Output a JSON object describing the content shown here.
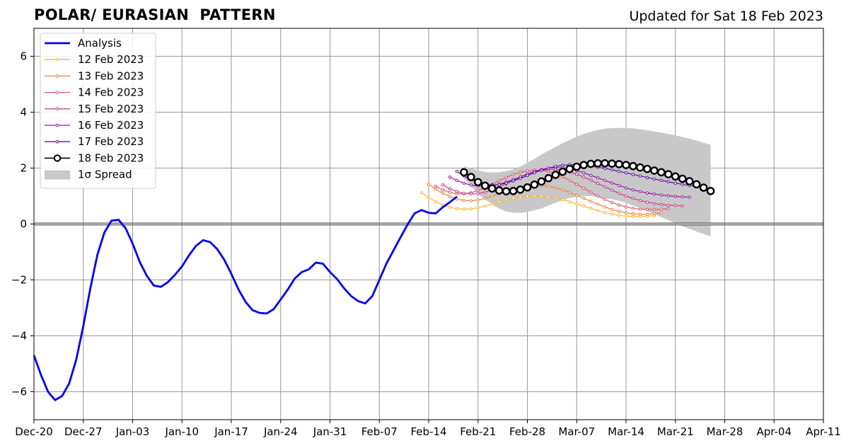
{
  "header": {
    "title": "POLAR/ EURASIAN  PATTERN",
    "updated": "Updated for Sat 18 Feb 2023"
  },
  "colors": {
    "analysis": "#0000ee",
    "spread": "#c8c8c8",
    "grid": "#999999",
    "f12": "#fdb62f",
    "f13": "#ef8040",
    "f14": "#e0576b",
    "f15": "#c13d8c",
    "f16": "#9517a8",
    "f17": "#5e0fa5",
    "f18": "#000000"
  },
  "chart_data": {
    "type": "line",
    "title": "POLAR/ EURASIAN  PATTERN",
    "xlabel": "",
    "ylabel": "",
    "grid": true,
    "legend_position": "top-left",
    "xlim": [
      "2022-12-20",
      "2023-04-11"
    ],
    "ylim": [
      -7,
      7
    ],
    "x_ticks": [
      "2022-12-20",
      "2022-12-27",
      "2023-01-03",
      "2023-01-10",
      "2023-01-17",
      "2023-01-24",
      "2023-01-31",
      "2023-02-07",
      "2023-02-14",
      "2023-02-21",
      "2023-02-28",
      "2023-03-07",
      "2023-03-14",
      "2023-03-21",
      "2023-03-28",
      "2023-04-04",
      "2023-04-11"
    ],
    "x_tick_labels": [
      "Dec-20",
      "Dec-27",
      "Jan-03",
      "Jan-10",
      "Jan-17",
      "Jan-24",
      "Jan-31",
      "Feb-07",
      "Feb-14",
      "Feb-21",
      "Feb-28",
      "Mar-07",
      "Mar-14",
      "Mar-21",
      "Mar-28",
      "Apr-04",
      "Apr-11"
    ],
    "y_ticks": [
      -6,
      -4,
      -2,
      0,
      2,
      4,
      6
    ],
    "y_tick_labels": [
      "−6",
      "−4",
      "−2",
      "0",
      "2",
      "4",
      "6"
    ],
    "legend": [
      {
        "label": "Analysis",
        "kind": "thick",
        "color_key": "analysis"
      },
      {
        "label": "12 Feb 2023",
        "kind": "dots",
        "color_key": "f12"
      },
      {
        "label": "13 Feb 2023",
        "kind": "dots",
        "color_key": "f13"
      },
      {
        "label": "14 Feb 2023",
        "kind": "dots",
        "color_key": "f14"
      },
      {
        "label": "15 Feb 2023",
        "kind": "dots",
        "color_key": "f15"
      },
      {
        "label": "16 Feb 2023",
        "kind": "dots",
        "color_key": "f16"
      },
      {
        "label": "17 Feb 2023",
        "kind": "dots",
        "color_key": "f17"
      },
      {
        "label": "18 Feb 2023",
        "kind": "circles",
        "color_key": "f18"
      },
      {
        "label": "1σ Spread",
        "kind": "patch",
        "color_key": "spread"
      }
    ],
    "series": [
      {
        "name": "Analysis",
        "style": "thick",
        "color_key": "analysis",
        "start": "2022-12-20",
        "values": [
          -4.7,
          -5.4,
          -6.0,
          -6.3,
          -6.15,
          -5.7,
          -4.85,
          -3.65,
          -2.3,
          -1.1,
          -0.3,
          0.12,
          0.15,
          -0.15,
          -0.7,
          -1.35,
          -1.85,
          -2.2,
          -2.25,
          -2.08,
          -1.82,
          -1.52,
          -1.12,
          -0.78,
          -0.58,
          -0.65,
          -0.9,
          -1.28,
          -1.78,
          -2.33,
          -2.78,
          -3.08,
          -3.18,
          -3.2,
          -3.05,
          -2.7,
          -2.35,
          -1.95,
          -1.72,
          -1.62,
          -1.38,
          -1.42,
          -1.72,
          -1.97,
          -2.3,
          -2.58,
          -2.76,
          -2.84,
          -2.58,
          -2.0,
          -1.42,
          -0.95,
          -0.48,
          -0.02,
          0.38,
          0.5,
          0.4,
          0.38,
          0.6,
          0.78,
          0.98
        ]
      },
      {
        "name": "12 Feb 2023",
        "style": "dots",
        "color_key": "f12",
        "start": "2023-02-13",
        "values": [
          1.12,
          0.95,
          0.8,
          0.68,
          0.6,
          0.55,
          0.53,
          0.54,
          0.58,
          0.64,
          0.71,
          0.79,
          0.86,
          0.92,
          0.96,
          0.99,
          1.0,
          0.99,
          0.96,
          0.92,
          0.87,
          0.8,
          0.72,
          0.64,
          0.56,
          0.48,
          0.41,
          0.35,
          0.31,
          0.28,
          0.27,
          0.27,
          0.28,
          0.3
        ]
      },
      {
        "name": "13 Feb 2023",
        "style": "dots",
        "color_key": "f13",
        "start": "2023-02-14",
        "values": [
          1.42,
          1.25,
          1.1,
          0.98,
          0.89,
          0.84,
          0.83,
          0.86,
          0.92,
          1.0,
          1.09,
          1.18,
          1.26,
          1.33,
          1.37,
          1.39,
          1.38,
          1.35,
          1.29,
          1.22,
          1.13,
          1.03,
          0.92,
          0.81,
          0.71,
          0.61,
          0.52,
          0.45,
          0.4,
          0.37,
          0.35,
          0.35,
          0.37,
          0.4
        ]
      },
      {
        "name": "14 Feb 2023",
        "style": "dots",
        "color_key": "f14",
        "start": "2023-02-15",
        "values": [
          1.35,
          1.22,
          1.13,
          1.08,
          1.08,
          1.12,
          1.2,
          1.3,
          1.42,
          1.55,
          1.67,
          1.77,
          1.85,
          1.9,
          1.93,
          1.92,
          1.88,
          1.8,
          1.69,
          1.56,
          1.42,
          1.28,
          1.14,
          1.0,
          0.88,
          0.77,
          0.68,
          0.61,
          0.56,
          0.53,
          0.52,
          0.52,
          0.53,
          0.55
        ]
      },
      {
        "name": "15 Feb 2023",
        "style": "dots",
        "color_key": "f15",
        "start": "2023-02-16",
        "values": [
          1.4,
          1.26,
          1.16,
          1.1,
          1.08,
          1.09,
          1.14,
          1.22,
          1.32,
          1.44,
          1.56,
          1.68,
          1.78,
          1.86,
          1.92,
          1.95,
          1.95,
          1.92,
          1.86,
          1.78,
          1.68,
          1.57,
          1.45,
          1.33,
          1.21,
          1.1,
          1.0,
          0.92,
          0.84,
          0.78,
          0.73,
          0.7,
          0.67,
          0.66,
          0.65
        ]
      },
      {
        "name": "16 Feb 2023",
        "style": "dots",
        "color_key": "f16",
        "start": "2023-02-17",
        "values": [
          1.68,
          1.56,
          1.46,
          1.39,
          1.36,
          1.35,
          1.37,
          1.42,
          1.5,
          1.59,
          1.69,
          1.79,
          1.88,
          1.95,
          2.0,
          2.02,
          2.01,
          1.97,
          1.91,
          1.83,
          1.74,
          1.65,
          1.56,
          1.47,
          1.38,
          1.29,
          1.22,
          1.16,
          1.11,
          1.07,
          1.04,
          1.01,
          0.99,
          0.97,
          0.96
        ]
      },
      {
        "name": "17 Feb 2023",
        "style": "dots",
        "color_key": "f17",
        "start": "2023-02-18",
        "values": [
          1.88,
          1.72,
          1.58,
          1.48,
          1.42,
          1.4,
          1.41,
          1.46,
          1.54,
          1.63,
          1.73,
          1.83,
          1.92,
          2.0,
          2.06,
          2.1,
          2.12,
          2.12,
          2.1,
          2.07,
          2.03,
          1.99,
          1.94,
          1.88,
          1.83,
          1.77,
          1.72,
          1.66,
          1.61,
          1.56,
          1.51,
          1.46,
          1.42,
          1.38,
          1.35
        ]
      },
      {
        "name": "18 Feb 2023",
        "style": "circles",
        "color_key": "f18",
        "start": "2023-02-19",
        "values": [
          1.85,
          1.68,
          1.5,
          1.37,
          1.27,
          1.2,
          1.17,
          1.18,
          1.23,
          1.31,
          1.41,
          1.52,
          1.64,
          1.76,
          1.87,
          1.97,
          2.05,
          2.11,
          2.15,
          2.17,
          2.17,
          2.16,
          2.14,
          2.11,
          2.07,
          2.02,
          1.97,
          1.91,
          1.85,
          1.78,
          1.7,
          1.62,
          1.53,
          1.42,
          1.3,
          1.18
        ]
      }
    ],
    "spread": {
      "name": "1σ Spread",
      "start": "2023-02-19",
      "upper": [
        2.07,
        2.0,
        1.92,
        1.86,
        1.84,
        1.85,
        1.89,
        1.96,
        2.06,
        2.19,
        2.33,
        2.48,
        2.62,
        2.76,
        2.89,
        3.01,
        3.12,
        3.22,
        3.3,
        3.36,
        3.41,
        3.43,
        3.44,
        3.43,
        3.42,
        3.39,
        3.35,
        3.31,
        3.27,
        3.22,
        3.17,
        3.11,
        3.05,
        2.98,
        2.91,
        2.83
      ],
      "lower": [
        1.63,
        1.36,
        1.08,
        0.88,
        0.7,
        0.55,
        0.45,
        0.4,
        0.4,
        0.43,
        0.49,
        0.56,
        0.66,
        0.76,
        0.85,
        0.93,
        0.98,
        1.0,
        1.0,
        0.96,
        0.93,
        0.89,
        0.83,
        0.75,
        0.66,
        0.57,
        0.46,
        0.36,
        0.24,
        0.14,
        0.03,
        -0.08,
        -0.17,
        -0.27,
        -0.36,
        -0.44
      ]
    }
  }
}
